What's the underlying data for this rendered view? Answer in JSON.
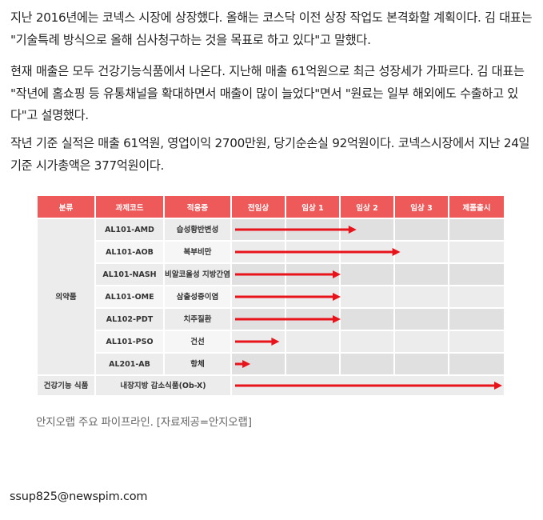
{
  "article": {
    "paragraph1": "지난 2016년에는 코넥스 시장에 상장했다. 올해는 코스닥 이전 상장 작업도 본격화할 계획이다. 김 대표는 \"기술특례 방식으로 올해 심사청구하는 것을 목표로 하고 있다\"고 말했다.",
    "paragraph2": "현재 매출은 모두 건강기능식품에서 나온다. 지난해 매출 61억원으로 최근 성장세가 가파르다. 김 대표는 \"작년에 홈쇼핑 등 유통채널을 확대하면서 매출이 많이 늘었다\"면서 \"원료는 일부 해외에도 수출하고 있다\"고 설명했다.",
    "paragraph3": "작년 기준 실적은 매출 61억원, 영업이익 2700만원, 당기순손실 92억원이다. 코넥스시장에서 지난 24일 기준 시가총액은 377억원이다."
  },
  "pipeline": {
    "header_color": "#ee5a5a",
    "arrow_color": "#e8141b",
    "headers": {
      "category": "분류",
      "code": "과제코드",
      "indication": "적응증",
      "preclinical": "전임상",
      "phase1": "임상 1",
      "phase2": "임상 2",
      "phase3": "임상 3",
      "launch": "제품출시"
    },
    "category_drug": "의약품",
    "category_food": "건강기능 식품",
    "rows": [
      {
        "code": "AL101-AMD",
        "indication": "습성황반변성",
        "progress": 2.3
      },
      {
        "code": "AL101-AOB",
        "indication": "복부비만",
        "progress": 3.1
      },
      {
        "code": "AL101-NASH",
        "indication": "비알코올성 지방간염",
        "progress": 2.0
      },
      {
        "code": "AL101-OME",
        "indication": "삼출성중이염",
        "progress": 2.0
      },
      {
        "code": "AL102-PDT",
        "indication": "치주질환",
        "progress": 2.0
      },
      {
        "code": "AL101-PSO",
        "indication": "건선",
        "progress": 0.9
      },
      {
        "code": "AL201-AB",
        "indication": "항체",
        "progress": 0.35
      }
    ],
    "food_row": {
      "product": "내장지방 감소식품(Ob-X)",
      "progress": 5.0
    }
  },
  "caption": "안지오랩 주요 파이프라인. [자료제공=안지오랩]",
  "email": "ssup825@newspim.com"
}
